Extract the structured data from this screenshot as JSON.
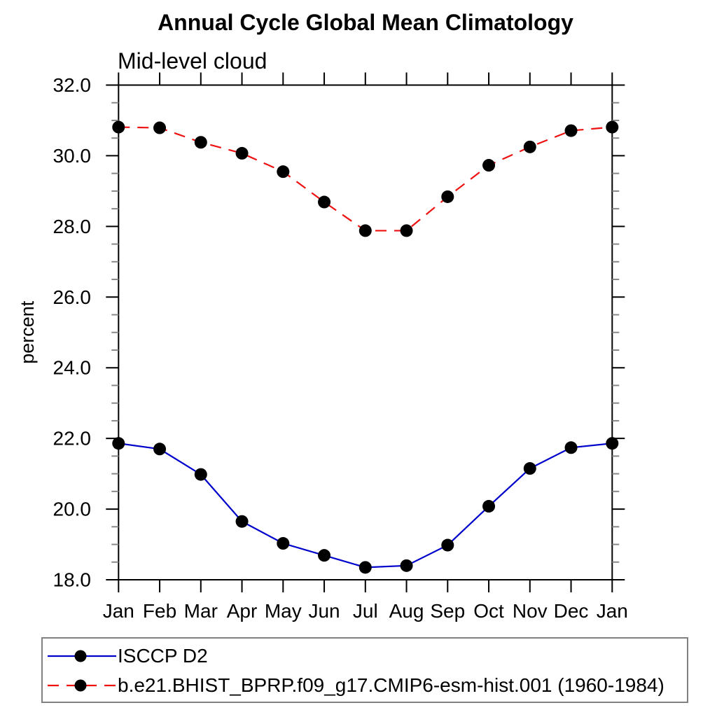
{
  "chart_data": {
    "type": "line",
    "title": "Annual Cycle Global Mean Climatology",
    "subtitle": "Mid-level cloud",
    "ylabel": "percent",
    "x_categories": [
      "Jan",
      "Feb",
      "Mar",
      "Apr",
      "May",
      "Jun",
      "Jul",
      "Aug",
      "Sep",
      "Oct",
      "Nov",
      "Dec",
      "Jan"
    ],
    "ylim": [
      18.0,
      32.0
    ],
    "ytick_step": 2.0,
    "ytick_minor_step": 0.5,
    "ytick_labels": [
      "18.0",
      "20.0",
      "22.0",
      "24.0",
      "26.0",
      "28.0",
      "30.0",
      "32.0"
    ],
    "grid": false,
    "axis_color": "#000000",
    "minor_tick_color": "#888888",
    "legend": {
      "position": "bottom-left",
      "border_color": "#808080"
    },
    "series": [
      {
        "name": "ISCCP D2",
        "color": "#0000cc",
        "line_style": "solid",
        "marker": "circle",
        "marker_color": "#000000",
        "values": [
          21.86,
          21.7,
          20.98,
          19.65,
          19.03,
          18.69,
          18.35,
          18.4,
          18.98,
          20.08,
          21.15,
          21.74,
          21.86
        ]
      },
      {
        "name": "b.e21.BHIST_BPRP.f09_g17.CMIP6-esm-hist.001 (1960-1984)",
        "color": "#ee1111",
        "line_style": "dashed",
        "marker": "circle",
        "marker_color": "#000000",
        "values": [
          30.81,
          30.79,
          30.38,
          30.07,
          29.55,
          28.69,
          27.88,
          27.88,
          28.84,
          29.73,
          30.25,
          30.71,
          30.81
        ]
      }
    ]
  }
}
